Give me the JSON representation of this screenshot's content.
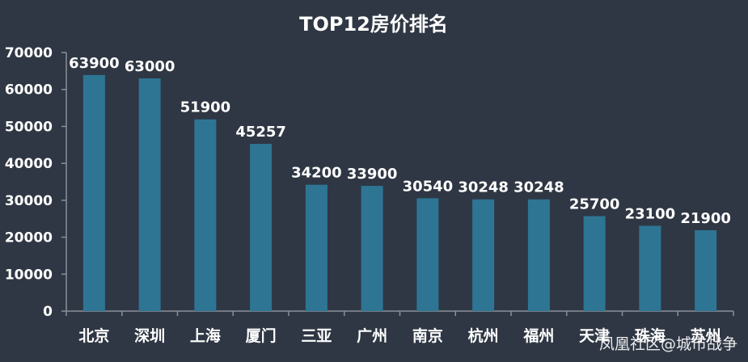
{
  "chart_data": {
    "type": "bar",
    "title": "TOP12房价排名",
    "categories": [
      "北京",
      "深圳",
      "上海",
      "厦门",
      "三亚",
      "广州",
      "南京",
      "杭州",
      "福州",
      "天津",
      "珠海",
      "苏州"
    ],
    "values": [
      63900,
      63000,
      51900,
      45257,
      34200,
      33900,
      30540,
      30248,
      30248,
      25700,
      23100,
      21900
    ],
    "xlabel": "",
    "ylabel": "",
    "ylim": [
      0,
      70000
    ],
    "yticks": [
      0,
      10000,
      20000,
      30000,
      40000,
      50000,
      60000,
      70000
    ],
    "grid": false,
    "legend": "none",
    "bar_color": "#2e7594",
    "axis_color": "#8a909a",
    "background_color": "#2f3744"
  },
  "watermark": "凤凰社区@城市战争"
}
